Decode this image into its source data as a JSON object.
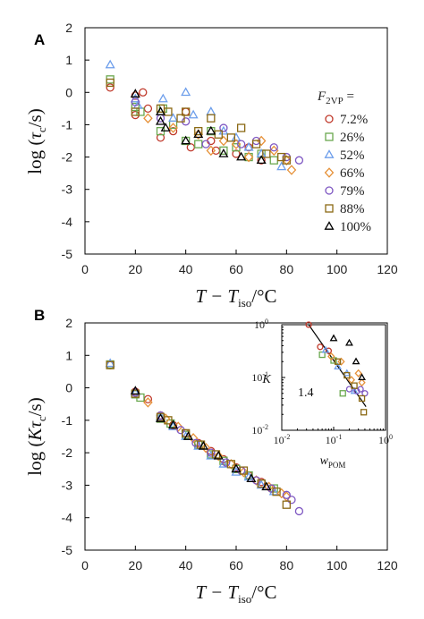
{
  "figure_labels": {
    "panel_a": "A",
    "panel_b": "B"
  },
  "legend": {
    "title_main": "F",
    "title_sub": "2VP",
    "title_tail": " =",
    "entries": [
      {
        "label": "7.2%",
        "color": "#c0392b",
        "marker": "circle"
      },
      {
        "label": "26%",
        "color": "#6aa84f",
        "marker": "square"
      },
      {
        "label": "52%",
        "color": "#6d9eeb",
        "marker": "triangle"
      },
      {
        "label": "66%",
        "color": "#e69138",
        "marker": "diamond"
      },
      {
        "label": "79%",
        "color": "#7e57c2",
        "marker": "circle"
      },
      {
        "label": "88%",
        "color": "#8b6914",
        "marker": "square"
      },
      {
        "label": "100%",
        "color": "#000000",
        "marker": "triangle"
      }
    ]
  },
  "chart_data": [
    {
      "type": "scatter",
      "panel": "A",
      "ylabel_parts": {
        "pre": "log (",
        "sym": "τ",
        "sub": "c",
        "post": "/s)"
      },
      "xlabel_parts": {
        "pre": "T − T",
        "sub": "iso",
        "post": "/°C"
      },
      "xlim": [
        0,
        120
      ],
      "ylim": [
        -5,
        2
      ],
      "xticks": [
        "0",
        "20",
        "40",
        "60",
        "80",
        "100",
        "120"
      ],
      "yticks": [
        "-5",
        "-4",
        "-3",
        "-2",
        "-1",
        "0",
        "1",
        "2"
      ],
      "series": [
        {
          "name": "7.2%",
          "points": [
            [
              10,
              0.15
            ],
            [
              20,
              -0.7
            ],
            [
              20,
              -0.1
            ],
            [
              23,
              0.0
            ],
            [
              25,
              -0.5
            ],
            [
              30,
              -1.4
            ],
            [
              35,
              -1.2
            ],
            [
              40,
              -0.6
            ],
            [
              42,
              -1.7
            ],
            [
              50,
              -1.5
            ],
            [
              52,
              -1.8
            ],
            [
              60,
              -1.9
            ],
            [
              65,
              -1.7
            ],
            [
              70,
              -2.1
            ]
          ]
        },
        {
          "name": "26%",
          "points": [
            [
              10,
              0.4
            ],
            [
              20,
              -0.45
            ],
            [
              22,
              -0.6
            ],
            [
              30,
              -1.2
            ],
            [
              31,
              -0.5
            ],
            [
              35,
              -1.0
            ],
            [
              40,
              -1.5
            ],
            [
              45,
              -1.6
            ],
            [
              50,
              -1.2
            ],
            [
              55,
              -1.8
            ],
            [
              60,
              -1.7
            ],
            [
              65,
              -2.0
            ],
            [
              70,
              -1.9
            ],
            [
              75,
              -2.1
            ]
          ]
        },
        {
          "name": "52%",
          "points": [
            [
              10,
              0.85
            ],
            [
              20,
              -0.2
            ],
            [
              21,
              -0.4
            ],
            [
              31,
              -0.2
            ],
            [
              35,
              -0.8
            ],
            [
              40,
              0.0
            ],
            [
              43,
              -0.7
            ],
            [
              50,
              -0.6
            ],
            [
              55,
              -1.2
            ],
            [
              60,
              -1.4
            ],
            [
              65,
              -1.7
            ],
            [
              70,
              -1.9
            ],
            [
              78,
              -2.3
            ]
          ]
        },
        {
          "name": "66%",
          "points": [
            [
              25,
              -0.8
            ],
            [
              35,
              -1.1
            ],
            [
              45,
              -1.3
            ],
            [
              50,
              -1.8
            ],
            [
              55,
              -1.5
            ],
            [
              60,
              -1.6
            ],
            [
              65,
              -2.0
            ],
            [
              70,
              -1.5
            ],
            [
              75,
              -1.8
            ],
            [
              80,
              -2.1
            ],
            [
              82,
              -2.4
            ]
          ]
        },
        {
          "name": "79%",
          "points": [
            [
              20,
              -0.3
            ],
            [
              30,
              -0.8
            ],
            [
              40,
              -0.9
            ],
            [
              48,
              -1.6
            ],
            [
              55,
              -1.1
            ],
            [
              62,
              -1.6
            ],
            [
              68,
              -1.5
            ],
            [
              75,
              -1.7
            ],
            [
              80,
              -2.0
            ],
            [
              85,
              -2.1
            ]
          ]
        },
        {
          "name": "88%",
          "points": [
            [
              10,
              0.3
            ],
            [
              20,
              -0.6
            ],
            [
              30,
              -0.5
            ],
            [
              33,
              -0.6
            ],
            [
              38,
              -0.8
            ],
            [
              40,
              -0.6
            ],
            [
              45,
              -1.2
            ],
            [
              50,
              -0.8
            ],
            [
              53,
              -1.3
            ],
            [
              58,
              -1.4
            ],
            [
              62,
              -1.1
            ],
            [
              68,
              -1.6
            ],
            [
              72,
              -1.9
            ],
            [
              78,
              -2.0
            ],
            [
              80,
              -2.1
            ]
          ]
        },
        {
          "name": "100%",
          "points": [
            [
              20,
              -0.05
            ],
            [
              30,
              -0.9
            ],
            [
              30,
              -0.6
            ],
            [
              32,
              -1.1
            ],
            [
              40,
              -1.5
            ],
            [
              45,
              -1.3
            ],
            [
              50,
              -1.2
            ],
            [
              55,
              -1.9
            ],
            [
              62,
              -2.0
            ],
            [
              70,
              -2.1
            ]
          ]
        }
      ]
    },
    {
      "type": "scatter",
      "panel": "B",
      "ylabel_parts": {
        "pre": "log (",
        "sym": "Kτ",
        "sub": "c",
        "post": "/s)"
      },
      "xlabel_parts": {
        "pre": "T − T",
        "sub": "iso",
        "post": "/°C"
      },
      "xlim": [
        0,
        120
      ],
      "ylim": [
        -5,
        2
      ],
      "xticks": [
        "0",
        "20",
        "40",
        "60",
        "80",
        "100",
        "120"
      ],
      "yticks": [
        "-5",
        "-4",
        "-3",
        "-2",
        "-1",
        "0",
        "1",
        "2"
      ],
      "series": [
        {
          "name": "7.2%",
          "points": [
            [
              10,
              0.7
            ],
            [
              20,
              -0.12
            ],
            [
              25,
              -0.35
            ],
            [
              30,
              -0.85
            ],
            [
              35,
              -1.15
            ],
            [
              40,
              -1.4
            ],
            [
              45,
              -1.7
            ],
            [
              50,
              -1.95
            ],
            [
              55,
              -2.2
            ],
            [
              60,
              -2.45
            ],
            [
              65,
              -2.7
            ],
            [
              70,
              -2.9
            ]
          ]
        },
        {
          "name": "26%",
          "points": [
            [
              10,
              0.72
            ],
            [
              20,
              -0.2
            ],
            [
              22,
              -0.3
            ],
            [
              30,
              -0.95
            ],
            [
              34,
              -1.1
            ],
            [
              40,
              -1.45
            ],
            [
              45,
              -1.75
            ],
            [
              50,
              -2.05
            ],
            [
              55,
              -2.25
            ],
            [
              60,
              -2.5
            ],
            [
              65,
              -2.7
            ],
            [
              70,
              -2.95
            ],
            [
              75,
              -3.1
            ]
          ]
        },
        {
          "name": "52%",
          "points": [
            [
              10,
              0.75
            ],
            [
              20,
              -0.15
            ],
            [
              30,
              -0.9
            ],
            [
              35,
              -1.2
            ],
            [
              40,
              -1.5
            ],
            [
              45,
              -1.8
            ],
            [
              50,
              -2.1
            ],
            [
              55,
              -2.35
            ],
            [
              60,
              -2.6
            ],
            [
              65,
              -2.75
            ],
            [
              70,
              -3.0
            ],
            [
              75,
              -3.2
            ]
          ]
        },
        {
          "name": "66%",
          "points": [
            [
              25,
              -0.45
            ],
            [
              32,
              -0.95
            ],
            [
              37,
              -1.2
            ],
            [
              43,
              -1.55
            ],
            [
              48,
              -1.85
            ],
            [
              53,
              -2.1
            ],
            [
              58,
              -2.35
            ],
            [
              63,
              -2.6
            ],
            [
              68,
              -2.85
            ],
            [
              73,
              -3.05
            ],
            [
              78,
              -3.25
            ],
            [
              80,
              -3.35
            ]
          ]
        },
        {
          "name": "79%",
          "points": [
            [
              20,
              -0.15
            ],
            [
              30,
              -0.85
            ],
            [
              38,
              -1.3
            ],
            [
              44,
              -1.7
            ],
            [
              50,
              -2.0
            ],
            [
              56,
              -2.3
            ],
            [
              62,
              -2.55
            ],
            [
              68,
              -2.85
            ],
            [
              74,
              -3.1
            ],
            [
              80,
              -3.3
            ],
            [
              82,
              -3.45
            ],
            [
              85,
              -3.8
            ]
          ]
        },
        {
          "name": "88%",
          "points": [
            [
              10,
              0.7
            ],
            [
              20,
              -0.18
            ],
            [
              30,
              -0.9
            ],
            [
              33,
              -1.0
            ],
            [
              40,
              -1.4
            ],
            [
              46,
              -1.75
            ],
            [
              52,
              -2.05
            ],
            [
              58,
              -2.35
            ],
            [
              63,
              -2.55
            ],
            [
              70,
              -2.95
            ],
            [
              76,
              -3.2
            ],
            [
              80,
              -3.6
            ]
          ]
        },
        {
          "name": "100%",
          "points": [
            [
              20,
              -0.1
            ],
            [
              30,
              -0.95
            ],
            [
              35,
              -1.15
            ],
            [
              41,
              -1.5
            ],
            [
              47,
              -1.8
            ],
            [
              53,
              -2.1
            ],
            [
              60,
              -2.5
            ],
            [
              66,
              -2.8
            ],
            [
              72,
              -3.05
            ]
          ]
        }
      ]
    },
    {
      "type": "scatter",
      "panel": "B-inset",
      "xscale": "log",
      "yscale": "log",
      "xlim": [
        0.01,
        1
      ],
      "ylim": [
        0.01,
        1
      ],
      "xlabel_parts": {
        "pre": "w",
        "sub": "POM"
      },
      "ylabel": "K",
      "annotation": "1.4",
      "xtick_labels": [
        {
          "base": "10",
          "exp": "-2"
        },
        {
          "base": "10",
          "exp": "-1"
        },
        {
          "base": "10",
          "exp": "0"
        }
      ],
      "ytick_labels": [
        {
          "base": "10",
          "exp": "-2"
        },
        {
          "base": "10",
          "exp": "-1"
        },
        {
          "base": "10",
          "exp": "0"
        }
      ],
      "fit_line": [
        [
          0.033,
          1.0
        ],
        [
          0.42,
          0.028
        ]
      ],
      "series": [
        {
          "name": "7.2%",
          "points": [
            [
              0.033,
              1.0
            ],
            [
              0.055,
              0.38
            ],
            [
              0.08,
              0.32
            ]
          ]
        },
        {
          "name": "26%",
          "points": [
            [
              0.06,
              0.27
            ],
            [
              0.1,
              0.21
            ],
            [
              0.15,
              0.05
            ]
          ]
        },
        {
          "name": "52%",
          "points": [
            [
              0.07,
              0.33
            ],
            [
              0.12,
              0.16
            ],
            [
              0.18,
              0.12
            ],
            [
              0.25,
              0.055
            ]
          ]
        },
        {
          "name": "66%",
          "points": [
            [
              0.09,
              0.25
            ],
            [
              0.14,
              0.2
            ],
            [
              0.22,
              0.09
            ],
            [
              0.3,
              0.12
            ],
            [
              0.35,
              0.08
            ]
          ]
        },
        {
          "name": "79%",
          "points": [
            [
              0.2,
              0.06
            ],
            [
              0.28,
              0.055
            ],
            [
              0.33,
              0.06
            ],
            [
              0.4,
              0.05
            ]
          ]
        },
        {
          "name": "88%",
          "points": [
            [
              0.12,
              0.2
            ],
            [
              0.18,
              0.11
            ],
            [
              0.25,
              0.07
            ],
            [
              0.35,
              0.04
            ],
            [
              0.38,
              0.022
            ]
          ]
        },
        {
          "name": "100%",
          "points": [
            [
              0.1,
              0.55
            ],
            [
              0.2,
              0.45
            ],
            [
              0.27,
              0.2
            ],
            [
              0.35,
              0.1
            ]
          ]
        }
      ]
    }
  ]
}
